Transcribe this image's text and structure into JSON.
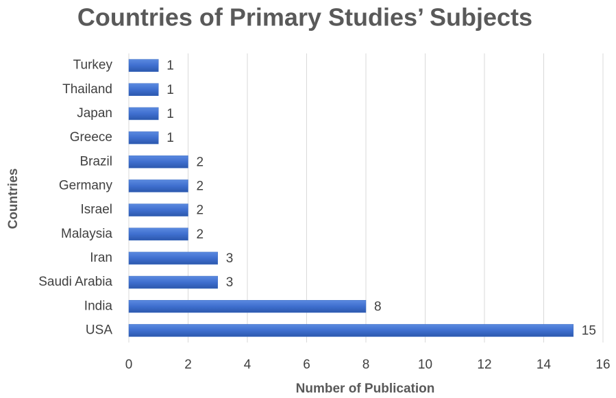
{
  "chart_data": {
    "type": "hbar",
    "title": "Countries of Primary Studies’ Subjects",
    "x_label": "Number of Publication",
    "y_label": "Countries",
    "categories": [
      "Turkey",
      "Thailand",
      "Japan",
      "Greece",
      "Brazil",
      "Germany",
      "Israel",
      "Malaysia",
      "Iran",
      "Saudi Arabia",
      "India",
      "USA"
    ],
    "values": [
      1,
      1,
      1,
      1,
      2,
      2,
      2,
      2,
      3,
      3,
      8,
      15
    ],
    "color": "#4472c4",
    "xlim": [
      0,
      16
    ],
    "xticks": [
      0,
      2,
      4,
      6,
      8,
      10,
      12,
      14,
      16
    ],
    "grid": true
  }
}
